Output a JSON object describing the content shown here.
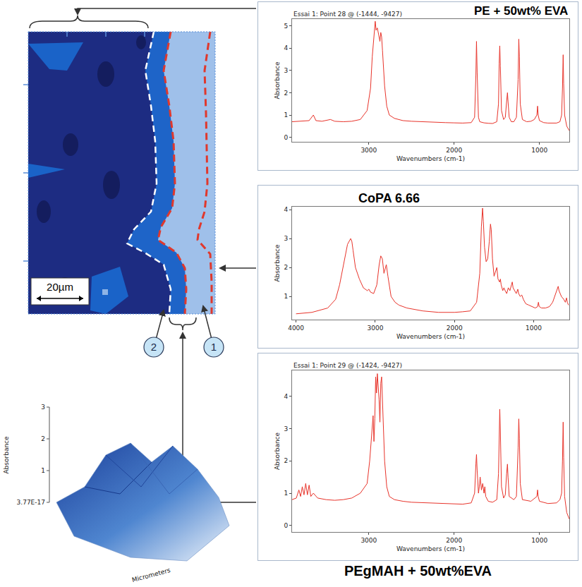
{
  "chart_data": [
    {
      "type": "line",
      "title": "PE + 50wt% EVA",
      "subtitle": "Essai 1: Point 28 @ (-1444, -9427)",
      "x_label": "Wavenumbers (cm-1)",
      "y_label": "Absorbance",
      "color": "#e8332a",
      "grid": false,
      "xlim": [
        3900,
        650
      ],
      "ylim": [
        -0.2,
        5.3
      ],
      "xticks": [
        3000,
        2000,
        1000
      ],
      "yticks": [
        0,
        1,
        2,
        3,
        4,
        5
      ],
      "x": [
        3900,
        3800,
        3700,
        3650,
        3620,
        3550,
        3450,
        3400,
        3300,
        3200,
        3100,
        3020,
        2980,
        2960,
        2940,
        2925,
        2915,
        2900,
        2885,
        2870,
        2860,
        2850,
        2840,
        2830,
        2815,
        2790,
        2760,
        2700,
        2600,
        2500,
        2400,
        2300,
        2200,
        2100,
        2000,
        1900,
        1800,
        1760,
        1745,
        1738,
        1730,
        1715,
        1700,
        1650,
        1600,
        1550,
        1500,
        1480,
        1472,
        1465,
        1458,
        1445,
        1420,
        1400,
        1385,
        1375,
        1368,
        1355,
        1330,
        1300,
        1270,
        1250,
        1242,
        1235,
        1225,
        1200,
        1150,
        1100,
        1060,
        1030,
        1022,
        1015,
        1000,
        950,
        900,
        850,
        800,
        760,
        740,
        730,
        722,
        716,
        705,
        680,
        650
      ],
      "values": [
        0.7,
        0.72,
        0.75,
        1.0,
        0.75,
        0.72,
        0.8,
        0.72,
        0.7,
        0.72,
        0.8,
        1.2,
        2.2,
        3.6,
        4.4,
        5.2,
        4.8,
        4.9,
        4.6,
        4.3,
        4.7,
        4.5,
        3.9,
        3.2,
        2.3,
        1.4,
        1.0,
        0.85,
        0.75,
        0.72,
        0.7,
        0.7,
        0.68,
        0.66,
        0.65,
        0.64,
        0.66,
        0.9,
        2.8,
        4.3,
        2.9,
        0.9,
        0.7,
        0.65,
        0.63,
        0.62,
        0.7,
        1.5,
        3.3,
        4.1,
        3.2,
        1.2,
        0.8,
        0.9,
        1.6,
        2.0,
        1.6,
        0.9,
        0.7,
        0.7,
        0.9,
        2.6,
        4.4,
        3.6,
        1.5,
        0.8,
        0.7,
        0.72,
        0.8,
        1.0,
        1.4,
        1.0,
        0.75,
        0.66,
        0.64,
        0.63,
        0.64,
        0.7,
        1.0,
        2.2,
        3.7,
        2.4,
        1.0,
        0.5,
        0.3
      ]
    },
    {
      "type": "line",
      "title": "CoPA 6.66",
      "x_label": "Wavenumbers (cm-1)",
      "y_label": "Absorbance",
      "color": "#e8332a",
      "grid": false,
      "xlim": [
        4050,
        550
      ],
      "ylim": [
        0.2,
        4.1
      ],
      "xticks": [
        4000,
        3000,
        2000,
        1000
      ],
      "yticks": [
        1,
        2,
        3,
        4
      ],
      "x": [
        4000,
        3800,
        3600,
        3500,
        3450,
        3400,
        3350,
        3310,
        3295,
        3280,
        3250,
        3200,
        3150,
        3100,
        3080,
        3060,
        3020,
        2980,
        2950,
        2930,
        2910,
        2890,
        2870,
        2860,
        2840,
        2800,
        2750,
        2700,
        2600,
        2400,
        2200,
        2000,
        1900,
        1800,
        1720,
        1680,
        1660,
        1645,
        1635,
        1620,
        1600,
        1580,
        1560,
        1545,
        1535,
        1520,
        1500,
        1475,
        1465,
        1450,
        1430,
        1420,
        1410,
        1390,
        1375,
        1360,
        1340,
        1320,
        1300,
        1280,
        1270,
        1260,
        1240,
        1220,
        1200,
        1190,
        1170,
        1150,
        1130,
        1100,
        1060,
        1020,
        980,
        950,
        940,
        930,
        900,
        850,
        800,
        760,
        720,
        700,
        690,
        680,
        650,
        620,
        600,
        585,
        575,
        560
      ],
      "values": [
        0.4,
        0.45,
        0.6,
        0.9,
        1.4,
        2.1,
        2.8,
        3.0,
        2.9,
        2.6,
        2.0,
        1.6,
        1.3,
        1.2,
        1.25,
        1.15,
        1.1,
        1.4,
        2.1,
        2.4,
        2.3,
        1.8,
        2.0,
        2.1,
        1.7,
        1.0,
        0.8,
        0.7,
        0.6,
        0.5,
        0.45,
        0.45,
        0.47,
        0.5,
        0.8,
        1.8,
        3.4,
        4.05,
        3.6,
        2.7,
        2.2,
        2.3,
        2.9,
        3.5,
        3.3,
        2.3,
        1.7,
        1.9,
        2.0,
        1.6,
        1.5,
        1.6,
        1.4,
        1.2,
        1.3,
        1.2,
        1.1,
        1.3,
        1.2,
        1.4,
        1.5,
        1.3,
        1.2,
        1.1,
        1.25,
        1.1,
        1.0,
        1.05,
        0.9,
        0.75,
        0.7,
        0.65,
        0.6,
        0.65,
        0.8,
        0.65,
        0.6,
        0.6,
        0.65,
        0.8,
        1.1,
        1.3,
        1.35,
        1.2,
        1.0,
        0.9,
        0.8,
        0.95,
        0.8,
        0.7
      ]
    },
    {
      "type": "line",
      "title": "PEgMAH + 50wt%EVA",
      "subtitle": "Essai 1: Point 29 @ (-1424, -9427)",
      "x_label": "Wavenumbers (cm-1)",
      "y_label": "Absorbance",
      "color": "#e8332a",
      "grid": false,
      "xlim": [
        3900,
        650
      ],
      "ylim": [
        -0.2,
        4.8
      ],
      "xticks": [
        3000,
        2000,
        1000
      ],
      "yticks": [
        0,
        1,
        2,
        3,
        4
      ],
      "x": [
        3900,
        3850,
        3820,
        3800,
        3780,
        3760,
        3740,
        3720,
        3700,
        3680,
        3650,
        3600,
        3500,
        3400,
        3300,
        3200,
        3100,
        3020,
        2990,
        2960,
        2950,
        2940,
        2930,
        2920,
        2910,
        2900,
        2890,
        2880,
        2870,
        2860,
        2850,
        2840,
        2830,
        2815,
        2790,
        2760,
        2700,
        2600,
        2500,
        2300,
        2100,
        1900,
        1800,
        1760,
        1745,
        1738,
        1730,
        1715,
        1705,
        1695,
        1680,
        1665,
        1650,
        1640,
        1630,
        1600,
        1550,
        1500,
        1480,
        1472,
        1465,
        1458,
        1445,
        1420,
        1400,
        1385,
        1375,
        1368,
        1355,
        1300,
        1270,
        1250,
        1242,
        1235,
        1225,
        1200,
        1100,
        1030,
        1022,
        1015,
        1000,
        900,
        800,
        760,
        740,
        730,
        722,
        716,
        705,
        680,
        650
      ],
      "values": [
        0.8,
        0.85,
        1.1,
        0.9,
        1.2,
        0.95,
        1.3,
        0.95,
        1.25,
        0.9,
        1.0,
        0.85,
        0.8,
        0.78,
        0.8,
        0.85,
        1.0,
        1.3,
        2.0,
        3.2,
        3.4,
        2.6,
        3.3,
        4.6,
        4.1,
        4.7,
        4.3,
        3.9,
        3.2,
        4.4,
        4.6,
        3.8,
        2.9,
        2.0,
        1.2,
        0.9,
        0.8,
        0.75,
        0.72,
        0.7,
        0.68,
        0.66,
        0.7,
        1.0,
        1.9,
        2.2,
        1.7,
        1.0,
        1.2,
        1.5,
        1.1,
        1.3,
        1.0,
        1.2,
        0.9,
        0.75,
        0.72,
        0.8,
        1.6,
        3.0,
        3.6,
        2.9,
        1.2,
        0.85,
        0.95,
        1.6,
        1.9,
        1.5,
        0.9,
        0.8,
        0.9,
        2.4,
        3.3,
        2.7,
        1.3,
        0.8,
        0.75,
        0.9,
        1.1,
        0.9,
        0.75,
        0.68,
        0.7,
        0.8,
        1.0,
        2.0,
        3.2,
        2.1,
        0.9,
        0.4,
        0.2
      ]
    }
  ],
  "map": {
    "scale_bar": "20µm",
    "markers": [
      "2",
      "1"
    ]
  },
  "surface": {
    "z_label": "Absorbance",
    "x_label": "Micrometers",
    "zlim": [
      0,
      3
    ],
    "zticks": [
      {
        "value": 0,
        "label": "3.77E-17"
      },
      1,
      2,
      3
    ]
  }
}
